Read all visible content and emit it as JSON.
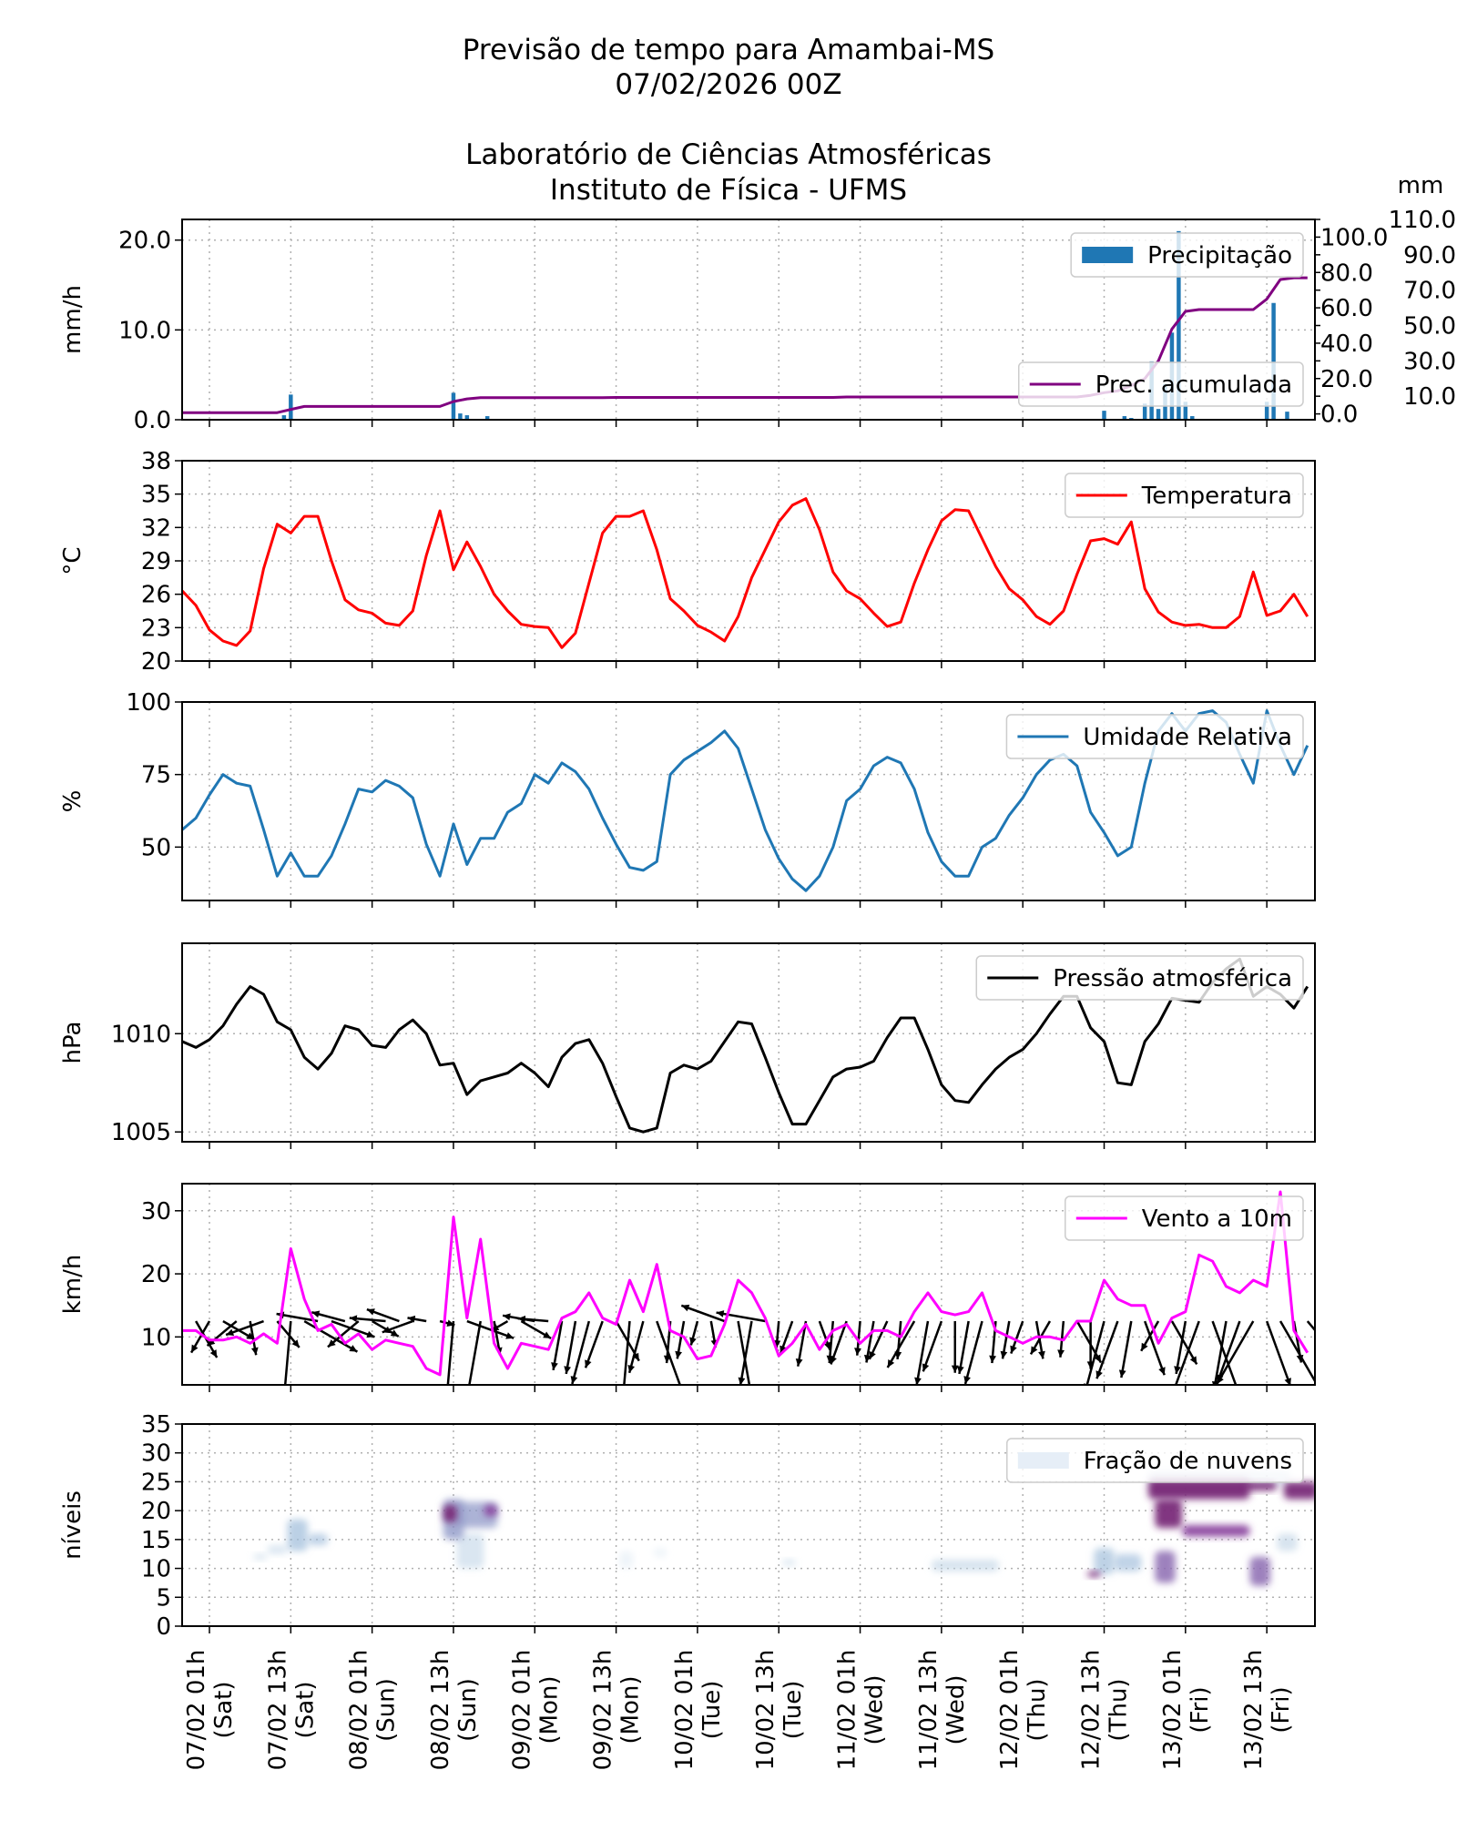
{
  "header": {
    "title_line1": "Previsão de tempo para Amambai-MS",
    "title_line2": "07/02/2026 00Z",
    "title_line3": "Laboratório de Ciências Atmosféricas",
    "title_line4": "Instituto de Física - UFMS"
  },
  "time_axis": {
    "start": "06/02 21h",
    "step_hours": 2,
    "tick_labels": [
      {
        "date": "07/02 01h",
        "day": "(Sat)"
      },
      {
        "date": "07/02 13h",
        "day": "(Sat)"
      },
      {
        "date": "08/02 01h",
        "day": "(Sun)"
      },
      {
        "date": "08/02 13h",
        "day": "(Sun)"
      },
      {
        "date": "09/02 01h",
        "day": "(Mon)"
      },
      {
        "date": "09/02 13h",
        "day": "(Mon)"
      },
      {
        "date": "10/02 01h",
        "day": "(Tue)"
      },
      {
        "date": "10/02 13h",
        "day": "(Tue)"
      },
      {
        "date": "11/02 01h",
        "day": "(Wed)"
      },
      {
        "date": "11/02 13h",
        "day": "(Wed)"
      },
      {
        "date": "12/02 01h",
        "day": "(Thu)"
      },
      {
        "date": "12/02 13h",
        "day": "(Thu)"
      },
      {
        "date": "13/02 01h",
        "day": "(Fri)"
      },
      {
        "date": "13/02 13h",
        "day": "(Fri)"
      }
    ],
    "grid": true
  },
  "chart_data": [
    {
      "type": "bar",
      "ylabel": "mm/h",
      "ylim": [
        0,
        22.3
      ],
      "yticks": [
        "0.0",
        "10.0",
        "20.0"
      ],
      "ytick_values": [
        0,
        10,
        20
      ],
      "legend": "Precipitação",
      "legend_placement": "top-right",
      "color": "#1f77b4",
      "bars": [
        [
          "07/02 12h",
          0.5
        ],
        [
          "07/02 13h",
          2.8
        ],
        [
          "08/02 13h",
          3.0
        ],
        [
          "08/02 14h",
          0.7
        ],
        [
          "08/02 15h",
          0.5
        ],
        [
          "08/02 18h",
          0.4
        ],
        [
          "09/02 14h",
          0.1
        ],
        [
          "12/02 13h",
          1.0
        ],
        [
          "12/02 16h",
          0.4
        ],
        [
          "12/02 17h",
          0.2
        ],
        [
          "12/02 19h",
          1.8
        ],
        [
          "12/02 20h",
          6.5
        ],
        [
          "12/02 21h",
          1.2
        ],
        [
          "12/02 22h",
          4.0
        ],
        [
          "12/02 23h",
          9.7
        ],
        [
          "13/02 00h",
          21.0
        ],
        [
          "13/02 01h",
          2.0
        ],
        [
          "13/02 02h",
          0.4
        ],
        [
          "13/02 13h",
          2.0
        ],
        [
          "13/02 14h",
          13.0
        ],
        [
          "13/02 15h",
          0.1
        ],
        [
          "13/02 16h",
          0.9
        ]
      ],
      "secondary": {
        "type": "line",
        "ylabel": "mm",
        "ylim": [
          -3.3,
          110
        ],
        "yticks": [
          "0.0",
          "10.0",
          "20.0",
          "30.0",
          "40.0",
          "50.0",
          "60.0",
          "70.0",
          "80.0",
          "90.0",
          "100.0",
          "110.0"
        ],
        "ytick_values": [
          0,
          10,
          20,
          30,
          40,
          50,
          60,
          70,
          80,
          90,
          100,
          110
        ],
        "legend": "Prec. acumulada",
        "legend_placement": "lower-right",
        "color": "#800080",
        "values": [
          0.7,
          0.7,
          0.7,
          0.7,
          0.7,
          0.7,
          0.7,
          0.7,
          2.5,
          4.2,
          4.2,
          4.2,
          4.2,
          4.2,
          4.2,
          4.2,
          4.2,
          4.2,
          4.2,
          4.2,
          7,
          8.5,
          9.2,
          9.2,
          9.2,
          9.2,
          9.2,
          9.2,
          9.2,
          9.2,
          9.2,
          9.2,
          9.3,
          9.3,
          9.3,
          9.3,
          9.3,
          9.3,
          9.3,
          9.3,
          9.3,
          9.3,
          9.3,
          9.3,
          9.3,
          9.3,
          9.3,
          9.3,
          9.3,
          9.6,
          9.6,
          9.6,
          9.6,
          9.6,
          9.6,
          9.6,
          9.6,
          9.6,
          9.6,
          9.6,
          9.6,
          9.6,
          9.6,
          9.6,
          9.6,
          9.6,
          9.6,
          10.5,
          12,
          13,
          16,
          20,
          30,
          48,
          58,
          59,
          59,
          59,
          59,
          59,
          65,
          76,
          77,
          77
        ]
      }
    },
    {
      "type": "line",
      "ylabel": "°C",
      "ylim": [
        20,
        38
      ],
      "yticks": [
        "20",
        "23",
        "26",
        "29",
        "32",
        "35",
        "38"
      ],
      "ytick_values": [
        20,
        23,
        26,
        29,
        32,
        35,
        38
      ],
      "legend": "Temperatura",
      "legend_placement": "top-right",
      "color": "#ff0000",
      "values": [
        26.3,
        25,
        22.8,
        21.8,
        21.4,
        22.7,
        28.3,
        32.3,
        31.5,
        33,
        33,
        29,
        25.5,
        24.6,
        24.3,
        23.4,
        23.2,
        24.5,
        29.5,
        33.5,
        28.2,
        30.7,
        28.5,
        26,
        24.5,
        23.3,
        23.1,
        23,
        21.2,
        22.5,
        27,
        31.5,
        33,
        33,
        33.5,
        30,
        25.6,
        24.5,
        23.2,
        22.6,
        21.8,
        24,
        27.5,
        30,
        32.5,
        34,
        34.6,
        31.8,
        28,
        26.3,
        25.6,
        24.3,
        23.1,
        23.5,
        27,
        30,
        32.6,
        33.6,
        33.5,
        31,
        28.5,
        26.5,
        25.5,
        24,
        23.3,
        24.5,
        27.8,
        30.8,
        31,
        30.5,
        32.5,
        26.5,
        24.4,
        23.5,
        23.2,
        23.3,
        23,
        23,
        24,
        28,
        24.1,
        24.5,
        26,
        24
      ]
    },
    {
      "type": "line",
      "ylabel": "%",
      "ylim": [
        31.6,
        100
      ],
      "yticks": [
        "50",
        "75",
        "100"
      ],
      "ytick_values": [
        50,
        75,
        100
      ],
      "legend": "Umidade Relativa",
      "legend_placement": "top-right",
      "color": "#1f77b4",
      "values": [
        56,
        60,
        68,
        75,
        72,
        71,
        56,
        40,
        48,
        40,
        40,
        47,
        58,
        70,
        69,
        73,
        71,
        67,
        51,
        40,
        58,
        44,
        53,
        53,
        62,
        65,
        75,
        72,
        79,
        76,
        70,
        60,
        51,
        43,
        42,
        45,
        75,
        80,
        83,
        86,
        90,
        84,
        70,
        56,
        46,
        39,
        35,
        40,
        50,
        66,
        70,
        78,
        81,
        79,
        70,
        55,
        45,
        40,
        40,
        50,
        53,
        61,
        67,
        75,
        80,
        82,
        78,
        62,
        55,
        47,
        50,
        72,
        90,
        96,
        90,
        96,
        97,
        93,
        82,
        72,
        97,
        85,
        75,
        85
      ]
    },
    {
      "type": "line",
      "ylabel": "hPa",
      "ylim": [
        1004.5,
        1014.6
      ],
      "yticks": [
        "1005",
        "1010"
      ],
      "ytick_values": [
        1005,
        1010
      ],
      "legend": "Pressão atmosférica",
      "legend_placement": "top-right",
      "color": "#000000",
      "values": [
        1009.6,
        1009.3,
        1009.7,
        1010.4,
        1011.5,
        1012.4,
        1012,
        1010.6,
        1010.2,
        1008.8,
        1008.2,
        1009,
        1010.4,
        1010.2,
        1009.4,
        1009.3,
        1010.2,
        1010.7,
        1010,
        1008.4,
        1008.5,
        1006.9,
        1007.6,
        1007.8,
        1008,
        1008.5,
        1008,
        1007.3,
        1008.8,
        1009.5,
        1009.7,
        1008.5,
        1006.8,
        1005.2,
        1005,
        1005.2,
        1008,
        1008.4,
        1008.2,
        1008.6,
        1009.6,
        1010.6,
        1010.5,
        1008.8,
        1007,
        1005.4,
        1005.4,
        1006.6,
        1007.8,
        1008.2,
        1008.3,
        1008.6,
        1009.8,
        1010.8,
        1010.8,
        1009.2,
        1007.4,
        1006.6,
        1006.5,
        1007.4,
        1008.2,
        1008.8,
        1009.2,
        1010,
        1011,
        1011.9,
        1011.9,
        1010.3,
        1009.6,
        1007.5,
        1007.4,
        1009.6,
        1010.5,
        1011.8,
        1011.7,
        1011.6,
        1012.6,
        1013.3,
        1013.8,
        1011.9,
        1012.4,
        1012,
        1011.3,
        1012.4
      ]
    },
    {
      "type": "line",
      "ylabel": "km/h",
      "ylim": [
        2.4,
        34.3
      ],
      "yticks": [
        "10",
        "20",
        "30"
      ],
      "ytick_values": [
        10,
        20,
        30
      ],
      "legend": "Vento a 10m",
      "legend_placement": "top-right",
      "color": "#ff00ff",
      "arrow_color": "#000000",
      "values": [
        11,
        11,
        9.5,
        9.5,
        10,
        9,
        10.5,
        9,
        24,
        16,
        11,
        12,
        9,
        10.5,
        8,
        9.5,
        9,
        8.5,
        5,
        4,
        29,
        13,
        25.5,
        9,
        5,
        9,
        8.5,
        8,
        13,
        14,
        17,
        13,
        12,
        19,
        14,
        21.5,
        11,
        10,
        6.5,
        7,
        12,
        19,
        17,
        13,
        7,
        9,
        12,
        8,
        11,
        12,
        9,
        11,
        11,
        10,
        14,
        17,
        14,
        13.5,
        14,
        17,
        11,
        10,
        9,
        10,
        10,
        9.5,
        12.5,
        12.5,
        19,
        16,
        15,
        15,
        9,
        13,
        14,
        23,
        22,
        18,
        17,
        19,
        18,
        33,
        11,
        7.5
      ],
      "arrow_direction_deg": [
        -150,
        -60,
        -120,
        -30,
        -140,
        -80,
        -160,
        -50,
        -95,
        -30,
        170,
        -20,
        165,
        -140,
        -30,
        175,
        160,
        -160,
        170,
        -15,
        -95,
        -20,
        -100,
        -80,
        -150,
        -30,
        170,
        175,
        -100,
        -100,
        -105,
        -110,
        -60,
        -95,
        -105,
        -70,
        -95,
        -100,
        -105,
        -80,
        160,
        -80,
        -100,
        170,
        -95,
        -110,
        -100,
        -70,
        -95,
        -110,
        -95,
        -100,
        -115,
        -95,
        -120,
        -100,
        -110,
        -90,
        -100,
        -105,
        -95,
        -100,
        -110,
        -80,
        -120,
        -95,
        -60,
        -90,
        -105,
        -110,
        -100,
        -70,
        -120,
        -60,
        -100,
        -110,
        -70,
        -100,
        -110,
        -120,
        -70,
        -60,
        -80,
        -50
      ]
    },
    {
      "type": "heatmap",
      "ylabel": "níveis",
      "ylim": [
        0,
        35
      ],
      "yticks": [
        "0",
        "5",
        "10",
        "15",
        "20",
        "25",
        "30",
        "35"
      ],
      "ytick_values": [
        0,
        5,
        10,
        15,
        20,
        25,
        30,
        35
      ],
      "legend": "Fração de nuvens",
      "legend_placement": "top-right",
      "colormap": [
        "#e0ecf4",
        "#bfd3e6",
        "#9ebcda",
        "#8c96c6",
        "#8c6bb1",
        "#88419d",
        "#7a2a7a"
      ],
      "regions": [
        {
          "start": "07/02 08h",
          "end": "07/02 09h",
          "level_min": 11.5,
          "level_max": 12.5,
          "fraction": 0.2
        },
        {
          "start": "07/02 10h",
          "end": "07/02 12h",
          "level_min": 12.5,
          "level_max": 14,
          "fraction": 0.15
        },
        {
          "start": "07/02 13h",
          "end": "07/02 15h",
          "level_min": 13,
          "level_max": 18.5,
          "fraction": 0.4
        },
        {
          "start": "07/02 16h",
          "end": "07/02 18h",
          "level_min": 14,
          "level_max": 16,
          "fraction": 0.3
        },
        {
          "start": "08/02 12h",
          "end": "08/02 14h",
          "level_min": 15,
          "level_max": 22,
          "fraction": 0.55
        },
        {
          "start": "08/02 14h",
          "end": "08/02 17h",
          "level_min": 10,
          "level_max": 16,
          "fraction": 0.15
        },
        {
          "start": "08/02 14h",
          "end": "08/02 19h",
          "level_min": 17,
          "level_max": 21.5,
          "fraction": 0.45
        },
        {
          "start": "08/02 12h",
          "end": "08/02 13h",
          "level_min": 18,
          "level_max": 21,
          "fraction": 0.95
        },
        {
          "start": "08/02 18h",
          "end": "08/02 19h",
          "level_min": 19,
          "level_max": 21,
          "fraction": 0.8
        },
        {
          "start": "09/02 14h",
          "end": "09/02 15h",
          "level_min": 10,
          "level_max": 13,
          "fraction": 0.12
        },
        {
          "start": "09/02 19h",
          "end": "09/02 20h",
          "level_min": 12,
          "level_max": 13.5,
          "fraction": 0.12
        },
        {
          "start": "10/02 14h",
          "end": "10/02 15h",
          "level_min": 10.5,
          "level_max": 11.5,
          "fraction": 0.2
        },
        {
          "start": "11/02 12h",
          "end": "11/02 21h",
          "level_min": 9.5,
          "level_max": 11.5,
          "fraction": 0.25
        },
        {
          "start": "12/02 12h",
          "end": "12/02 14h",
          "level_min": 9,
          "level_max": 13.5,
          "fraction": 0.35
        },
        {
          "start": "12/02 11h",
          "end": "12/02 12h",
          "level_min": 8.5,
          "level_max": 9.5,
          "fraction": 0.9
        },
        {
          "start": "12/02 15h",
          "end": "12/02 18h",
          "level_min": 9.5,
          "level_max": 12.5,
          "fraction": 0.3
        },
        {
          "start": "12/02 20h",
          "end": "13/02 16h",
          "level_min": 24.5,
          "level_max": 27,
          "fraction": 0.25
        },
        {
          "start": "12/02 21h",
          "end": "12/02 23h",
          "level_min": 7.5,
          "level_max": 13,
          "fraction": 0.7
        },
        {
          "start": "12/02 20h",
          "end": "13/02 10h",
          "level_min": 22,
          "level_max": 25.5,
          "fraction": 0.95
        },
        {
          "start": "12/02 21h",
          "end": "13/02 00h",
          "level_min": 17,
          "level_max": 22,
          "fraction": 0.9
        },
        {
          "start": "13/02 01h",
          "end": "13/02 10h",
          "level_min": 15.5,
          "level_max": 17.5,
          "fraction": 0.85
        },
        {
          "start": "13/02 10h",
          "end": "13/02 14h",
          "level_min": 23.5,
          "level_max": 25,
          "fraction": 0.9
        },
        {
          "start": "13/02 11h",
          "end": "13/02 13h",
          "level_min": 7,
          "level_max": 12,
          "fraction": 0.7
        },
        {
          "start": "13/02 15h",
          "end": "13/02 17h",
          "level_min": 13,
          "level_max": 16,
          "fraction": 0.25
        },
        {
          "start": "13/02 16h",
          "end": "13/02 20h",
          "level_min": 22,
          "level_max": 25,
          "fraction": 0.9
        }
      ]
    }
  ]
}
